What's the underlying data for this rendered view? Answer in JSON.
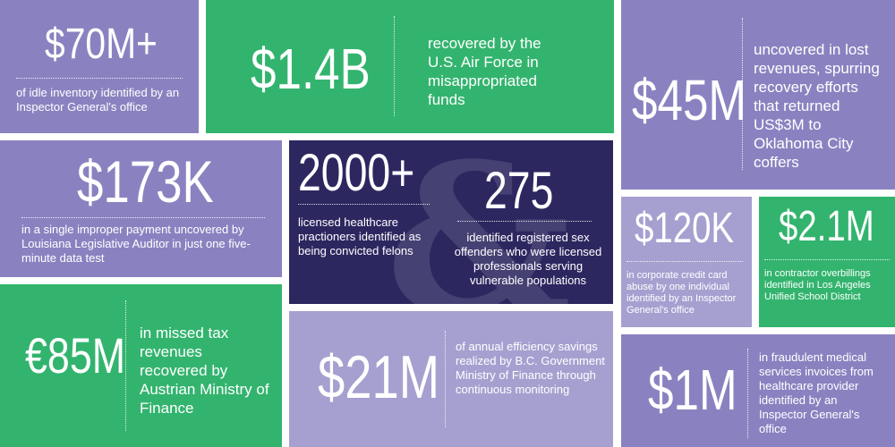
{
  "stats": {
    "t1": {
      "value": "$70M+",
      "desc": "of idle inventory identified by an Inspector General's office"
    },
    "t2": {
      "value": "$1.4B",
      "desc": "recovered by the U.S. Air Force in misappropriated funds"
    },
    "t3": {
      "value": "$45M",
      "desc": "uncovered in lost revenues, spurring recovery efforts that returned US$3M to Oklahoma City coffers"
    },
    "t4": {
      "value": "$173K",
      "desc": "in a single improper payment uncovered by Louisiana Legislative Auditor in just one five-minute data test"
    },
    "t5": {
      "value1": "2000+",
      "desc1": "licensed healthcare practioners identified as being convicted felons",
      "ampersand": "&",
      "value2": "275",
      "desc2": "identified registered sex offenders who were licensed professionals serving vulnerable populations"
    },
    "t6": {
      "value": "$120K",
      "desc": "in corporate credit card abuse by one individual identified by an Inspector General's office"
    },
    "t7": {
      "value": "$2.1M",
      "desc": "in contractor overbillings identified in Los Angeles Unified School District"
    },
    "t8": {
      "value": "€85M",
      "desc": "in missed tax revenues recovered by Austrian Ministry of Finance"
    },
    "t9": {
      "value": "$21M",
      "desc": "of annual efficiency savings realized by B.C. Government Ministry of Finance through continuous monitoring"
    },
    "t10": {
      "value": "$1M",
      "desc": "in fraudulent medical services invoices from healthcare provider identified by an Inspector General's office"
    }
  },
  "colors": {
    "purple": "#8a82c0",
    "lavender": "#a6a0d0",
    "green": "#33b46e",
    "navy": "#2d2760"
  }
}
